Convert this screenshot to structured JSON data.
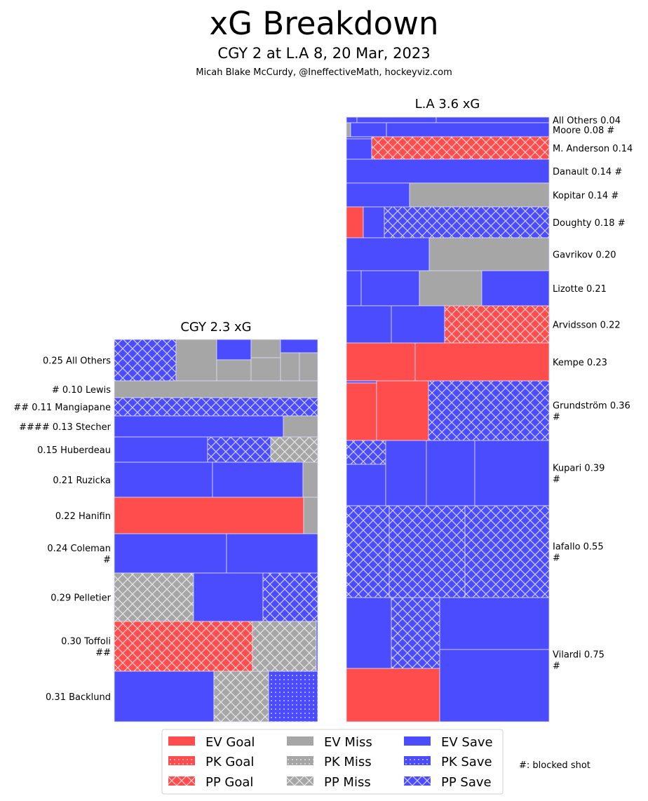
{
  "header": {
    "title": "xG Breakdown",
    "subtitle": "CGY 2 at L.A 8, 20 Mar, 2023",
    "credit": "Micah Blake McCurdy, @IneffectiveMath, hockeyviz.com"
  },
  "colors": {
    "goal": "#ff4c4c",
    "miss": "#a6a6a6",
    "save": "#4c4cff"
  },
  "chart_data": {
    "type": "treemap",
    "title": "xG Breakdown",
    "teams": [
      {
        "id": "cgy",
        "title": "CGY 2.3 xG",
        "total_xg": 2.3,
        "players": [
          {
            "name": "All Others",
            "xg": 0.25,
            "label": [
              "0.25 All Others"
            ],
            "shots": [
              "pp_save",
              "ev_miss",
              "ev_save",
              "ev_miss",
              "ev_miss",
              "ev_miss",
              "ev_save",
              "ev_miss",
              "ev_miss"
            ]
          },
          {
            "name": "Lewis",
            "xg": 0.1,
            "blocked": 1,
            "label": [
              "# 0.10 Lewis"
            ],
            "shots": [
              "ev_miss"
            ]
          },
          {
            "name": "Mangiapane",
            "xg": 0.11,
            "blocked": 2,
            "label": [
              "## 0.11 Mangiapane"
            ],
            "shots": [
              "pp_save"
            ]
          },
          {
            "name": "Stecher",
            "xg": 0.13,
            "blocked": 4,
            "label": [
              "#### 0.13 Stecher"
            ],
            "shots": [
              "ev_save",
              "ev_miss"
            ]
          },
          {
            "name": "Huberdeau",
            "xg": 0.15,
            "label": [
              "0.15 Huberdeau"
            ],
            "shots": [
              "ev_save",
              "pp_save",
              "pp_miss"
            ]
          },
          {
            "name": "Ruzicka",
            "xg": 0.21,
            "label": [
              "0.21 Ruzicka"
            ],
            "shots": [
              "ev_save",
              "ev_save",
              "ev_miss"
            ]
          },
          {
            "name": "Hanifin",
            "xg": 0.22,
            "label": [
              "0.22 Hanifin"
            ],
            "shots": [
              "ev_goal",
              "ev_miss"
            ]
          },
          {
            "name": "Coleman",
            "xg": 0.24,
            "blocked": 1,
            "label": [
              "0.24 Coleman",
              "#"
            ],
            "shots": [
              "ev_save",
              "ev_save"
            ]
          },
          {
            "name": "Pelletier",
            "xg": 0.29,
            "label": [
              "0.29 Pelletier"
            ],
            "shots": [
              "pp_miss",
              "ev_save",
              "pp_save"
            ]
          },
          {
            "name": "Toffoli",
            "xg": 0.3,
            "blocked": 2,
            "label": [
              "0.30 Toffoli",
              "##"
            ],
            "shots": [
              "pp_goal",
              "pp_miss",
              "ev_save"
            ]
          },
          {
            "name": "Backlund",
            "xg": 0.31,
            "label": [
              "0.31 Backlund"
            ],
            "shots": [
              "ev_save",
              "pp_miss",
              "pk_save"
            ]
          }
        ]
      },
      {
        "id": "la",
        "title": "L.A 3.6 xG",
        "total_xg": 3.6,
        "players": [
          {
            "name": "All Others",
            "xg": 0.04,
            "label": [
              "All Others 0.04"
            ],
            "shots": [
              "ev_save",
              "ev_save",
              "ev_save"
            ]
          },
          {
            "name": "Moore",
            "xg": 0.08,
            "blocked": 1,
            "label": [
              "Moore 0.08 #"
            ],
            "shots": [
              "ev_miss",
              "ev_save",
              "ev_save"
            ]
          },
          {
            "name": "M. Anderson",
            "xg": 0.14,
            "label": [
              "M. Anderson 0.14"
            ],
            "shots": [
              "ev_save",
              "ev_save",
              "pp_goal"
            ]
          },
          {
            "name": "Danault",
            "xg": 0.14,
            "blocked": 1,
            "label": [
              "Danault 0.14 #"
            ],
            "shots": [
              "ev_save"
            ]
          },
          {
            "name": "Kopitar",
            "xg": 0.14,
            "blocked": 1,
            "label": [
              "Kopitar 0.14 #"
            ],
            "shots": [
              "ev_save",
              "ev_miss"
            ]
          },
          {
            "name": "Doughty",
            "xg": 0.18,
            "blocked": 1,
            "label": [
              "Doughty 0.18 #"
            ],
            "shots": [
              "ev_goal",
              "ev_save",
              "pp_save"
            ]
          },
          {
            "name": "Gavrikov",
            "xg": 0.2,
            "label": [
              "Gavrikov 0.20"
            ],
            "shots": [
              "ev_save",
              "ev_miss"
            ]
          },
          {
            "name": "Lizotte",
            "xg": 0.21,
            "label": [
              "Lizotte 0.21"
            ],
            "shots": [
              "ev_save",
              "ev_save",
              "ev_miss",
              "ev_save"
            ]
          },
          {
            "name": "Arvidsson",
            "xg": 0.22,
            "label": [
              "Arvidsson 0.22"
            ],
            "shots": [
              "ev_save",
              "ev_save",
              "pp_goal"
            ]
          },
          {
            "name": "Kempe",
            "xg": 0.23,
            "label": [
              "Kempe 0.23"
            ],
            "shots": [
              "ev_goal",
              "ev_goal"
            ]
          },
          {
            "name": "Grundström",
            "xg": 0.36,
            "blocked": 1,
            "label": [
              "Grundström 0.36",
              "#"
            ],
            "shots": [
              "ev_save",
              "ev_goal",
              "ev_goal",
              "pp_save"
            ]
          },
          {
            "name": "Kupari",
            "xg": 0.39,
            "blocked": 1,
            "label": [
              "Kupari 0.39",
              "#"
            ],
            "shots": [
              "pp_save",
              "ev_save",
              "ev_save",
              "ev_save",
              "ev_save"
            ]
          },
          {
            "name": "Iafallo",
            "xg": 0.55,
            "blocked": 1,
            "label": [
              "Iafallo 0.55",
              "#"
            ],
            "shots": [
              "pp_save",
              "pp_save",
              "pp_save"
            ]
          },
          {
            "name": "Vilardi",
            "xg": 0.75,
            "blocked": 1,
            "label": [
              "Vilardi 0.75",
              "#"
            ],
            "shots": [
              "ev_save",
              "pp_save",
              "ev_goal",
              "ev_save",
              "ev_save"
            ]
          }
        ]
      }
    ],
    "legend": [
      {
        "key": "ev_goal",
        "label": "EV Goal"
      },
      {
        "key": "pk_goal",
        "label": "PK Goal"
      },
      {
        "key": "pp_goal",
        "label": "PP Goal"
      },
      {
        "key": "ev_miss",
        "label": "EV Miss"
      },
      {
        "key": "pk_miss",
        "label": "PK Miss"
      },
      {
        "key": "pp_miss",
        "label": "PP Miss"
      },
      {
        "key": "ev_save",
        "label": "EV Save"
      },
      {
        "key": "pk_save",
        "label": "PK Save"
      },
      {
        "key": "pp_save",
        "label": "PP Save"
      }
    ],
    "legend_placement": "bottom-center",
    "note": "#: blocked shot"
  }
}
